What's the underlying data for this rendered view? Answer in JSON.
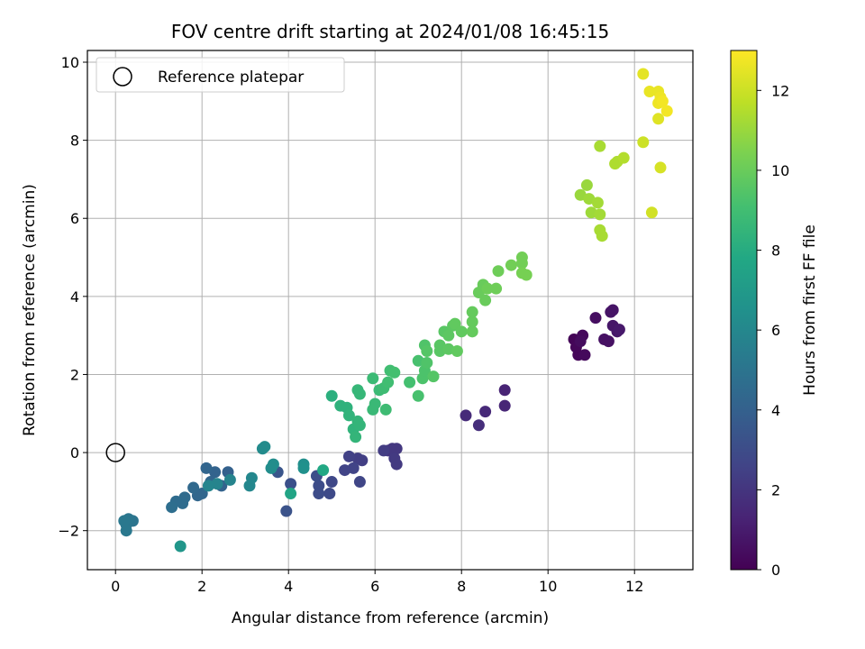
{
  "chart_data": {
    "type": "scatter",
    "title": "FOV centre drift starting at 2024/01/08 16:45:15",
    "xlabel": "Angular distance from reference (arcmin)",
    "ylabel": "Rotation from reference (arcmin)",
    "xlim": [
      -0.65,
      13.35
    ],
    "ylim": [
      -3.0,
      10.3
    ],
    "xticks": [
      0,
      2,
      4,
      6,
      8,
      10,
      12
    ],
    "yticks": [
      -2,
      0,
      2,
      4,
      6,
      8,
      10
    ],
    "grid": true,
    "legend": {
      "placement": "top-left",
      "entries": [
        {
          "label": "Reference platepar",
          "marker": "open-circle"
        }
      ]
    },
    "reference_point": {
      "x": 0,
      "y": 0
    },
    "colorbar": {
      "label": "Hours from first FF file",
      "colormap": "viridis",
      "range": [
        0,
        13
      ],
      "ticks": [
        0,
        2,
        4,
        6,
        8,
        10,
        12
      ]
    },
    "points": [
      {
        "x": 10.6,
        "y": 2.9,
        "c": 0.1
      },
      {
        "x": 10.7,
        "y": 2.5,
        "c": 0.2
      },
      {
        "x": 10.8,
        "y": 3.0,
        "c": 0.3
      },
      {
        "x": 10.85,
        "y": 2.5,
        "c": 0.3
      },
      {
        "x": 10.65,
        "y": 2.7,
        "c": 0.2
      },
      {
        "x": 10.75,
        "y": 2.85,
        "c": 0.4
      },
      {
        "x": 11.1,
        "y": 3.45,
        "c": 0.5
      },
      {
        "x": 11.3,
        "y": 2.9,
        "c": 0.6
      },
      {
        "x": 11.4,
        "y": 2.85,
        "c": 0.6
      },
      {
        "x": 11.45,
        "y": 3.6,
        "c": 0.7
      },
      {
        "x": 11.5,
        "y": 3.65,
        "c": 0.7
      },
      {
        "x": 11.5,
        "y": 3.25,
        "c": 0.8
      },
      {
        "x": 11.6,
        "y": 3.1,
        "c": 0.8
      },
      {
        "x": 11.65,
        "y": 3.15,
        "c": 0.9
      },
      {
        "x": 9.0,
        "y": 1.6,
        "c": 1.3
      },
      {
        "x": 9.0,
        "y": 1.2,
        "c": 1.4
      },
      {
        "x": 8.55,
        "y": 1.05,
        "c": 1.5
      },
      {
        "x": 8.1,
        "y": 0.95,
        "c": 1.6
      },
      {
        "x": 8.4,
        "y": 0.7,
        "c": 1.7
      },
      {
        "x": 6.3,
        "y": 0.05,
        "c": 2.0
      },
      {
        "x": 6.4,
        "y": 0.1,
        "c": 2.1
      },
      {
        "x": 6.5,
        "y": 0.1,
        "c": 2.1
      },
      {
        "x": 6.45,
        "y": -0.15,
        "c": 2.2
      },
      {
        "x": 6.5,
        "y": -0.3,
        "c": 2.2
      },
      {
        "x": 6.2,
        "y": 0.05,
        "c": 2.3
      },
      {
        "x": 5.6,
        "y": -0.15,
        "c": 2.4
      },
      {
        "x": 5.7,
        "y": -0.2,
        "c": 2.4
      },
      {
        "x": 5.4,
        "y": -0.1,
        "c": 2.5
      },
      {
        "x": 5.5,
        "y": -0.4,
        "c": 2.6
      },
      {
        "x": 5.3,
        "y": -0.45,
        "c": 2.6
      },
      {
        "x": 5.65,
        "y": -0.75,
        "c": 2.7
      },
      {
        "x": 5.0,
        "y": -0.75,
        "c": 2.8
      },
      {
        "x": 4.95,
        "y": -1.05,
        "c": 2.9
      },
      {
        "x": 4.7,
        "y": -0.85,
        "c": 3.0
      },
      {
        "x": 4.7,
        "y": -1.05,
        "c": 3.0
      },
      {
        "x": 4.65,
        "y": -0.6,
        "c": 3.1
      },
      {
        "x": 4.05,
        "y": -0.8,
        "c": 3.2
      },
      {
        "x": 3.95,
        "y": -1.5,
        "c": 3.3
      },
      {
        "x": 3.75,
        "y": -0.5,
        "c": 3.4
      },
      {
        "x": 2.6,
        "y": -0.5,
        "c": 4.0
      },
      {
        "x": 2.45,
        "y": -0.85,
        "c": 4.1
      },
      {
        "x": 2.3,
        "y": -0.5,
        "c": 4.1
      },
      {
        "x": 2.2,
        "y": -0.75,
        "c": 4.2
      },
      {
        "x": 2.1,
        "y": -0.4,
        "c": 4.2
      },
      {
        "x": 2.0,
        "y": -1.05,
        "c": 4.3
      },
      {
        "x": 1.9,
        "y": -1.1,
        "c": 4.3
      },
      {
        "x": 1.8,
        "y": -0.9,
        "c": 4.4
      },
      {
        "x": 1.6,
        "y": -1.15,
        "c": 4.5
      },
      {
        "x": 1.55,
        "y": -1.3,
        "c": 4.6
      },
      {
        "x": 1.4,
        "y": -1.25,
        "c": 4.6
      },
      {
        "x": 1.3,
        "y": -1.4,
        "c": 4.7
      },
      {
        "x": 0.4,
        "y": -1.75,
        "c": 5.0
      },
      {
        "x": 0.3,
        "y": -1.7,
        "c": 5.1
      },
      {
        "x": 0.25,
        "y": -1.85,
        "c": 5.1
      },
      {
        "x": 0.2,
        "y": -1.75,
        "c": 5.2
      },
      {
        "x": 0.25,
        "y": -2.0,
        "c": 5.2
      },
      {
        "x": 2.65,
        "y": -0.7,
        "c": 5.8
      },
      {
        "x": 2.35,
        "y": -0.8,
        "c": 5.8
      },
      {
        "x": 2.15,
        "y": -0.85,
        "c": 5.9
      },
      {
        "x": 3.1,
        "y": -0.85,
        "c": 6.0
      },
      {
        "x": 3.15,
        "y": -0.65,
        "c": 6.0
      },
      {
        "x": 3.4,
        "y": 0.1,
        "c": 6.2
      },
      {
        "x": 3.45,
        "y": 0.15,
        "c": 6.2
      },
      {
        "x": 3.65,
        "y": -0.3,
        "c": 6.3
      },
      {
        "x": 3.6,
        "y": -0.4,
        "c": 6.3
      },
      {
        "x": 4.35,
        "y": -0.3,
        "c": 6.4
      },
      {
        "x": 4.35,
        "y": -0.4,
        "c": 6.5
      },
      {
        "x": 1.5,
        "y": -2.4,
        "c": 6.8
      },
      {
        "x": 4.05,
        "y": -1.05,
        "c": 7.6
      },
      {
        "x": 4.8,
        "y": -0.45,
        "c": 7.8
      },
      {
        "x": 5.0,
        "y": 1.45,
        "c": 8.2
      },
      {
        "x": 5.2,
        "y": 1.2,
        "c": 8.3
      },
      {
        "x": 5.35,
        "y": 1.15,
        "c": 8.3
      },
      {
        "x": 5.4,
        "y": 0.95,
        "c": 8.4
      },
      {
        "x": 5.5,
        "y": 0.6,
        "c": 8.4
      },
      {
        "x": 5.55,
        "y": 0.4,
        "c": 8.5
      },
      {
        "x": 5.6,
        "y": 0.8,
        "c": 8.5
      },
      {
        "x": 5.65,
        "y": 0.7,
        "c": 8.5
      },
      {
        "x": 5.6,
        "y": 1.6,
        "c": 8.6
      },
      {
        "x": 5.65,
        "y": 1.5,
        "c": 8.6
      },
      {
        "x": 5.95,
        "y": 1.1,
        "c": 8.7
      },
      {
        "x": 6.0,
        "y": 1.25,
        "c": 8.7
      },
      {
        "x": 5.95,
        "y": 1.9,
        "c": 8.8
      },
      {
        "x": 6.1,
        "y": 1.6,
        "c": 8.8
      },
      {
        "x": 6.2,
        "y": 1.65,
        "c": 8.9
      },
      {
        "x": 6.25,
        "y": 1.1,
        "c": 8.9
      },
      {
        "x": 6.3,
        "y": 1.8,
        "c": 9.0
      },
      {
        "x": 6.35,
        "y": 2.1,
        "c": 9.0
      },
      {
        "x": 6.45,
        "y": 2.05,
        "c": 9.1
      },
      {
        "x": 6.8,
        "y": 1.8,
        "c": 9.1
      },
      {
        "x": 7.0,
        "y": 1.45,
        "c": 9.2
      },
      {
        "x": 7.0,
        "y": 2.35,
        "c": 9.2
      },
      {
        "x": 7.1,
        "y": 1.9,
        "c": 9.3
      },
      {
        "x": 7.15,
        "y": 2.1,
        "c": 9.3
      },
      {
        "x": 7.2,
        "y": 2.3,
        "c": 9.4
      },
      {
        "x": 7.15,
        "y": 2.75,
        "c": 9.4
      },
      {
        "x": 7.2,
        "y": 2.6,
        "c": 9.5
      },
      {
        "x": 7.35,
        "y": 1.95,
        "c": 9.5
      },
      {
        "x": 7.5,
        "y": 2.6,
        "c": 9.6
      },
      {
        "x": 7.5,
        "y": 2.75,
        "c": 9.6
      },
      {
        "x": 7.6,
        "y": 3.1,
        "c": 9.6
      },
      {
        "x": 7.7,
        "y": 3.0,
        "c": 9.7
      },
      {
        "x": 7.7,
        "y": 2.65,
        "c": 9.7
      },
      {
        "x": 7.8,
        "y": 3.25,
        "c": 9.7
      },
      {
        "x": 7.85,
        "y": 3.3,
        "c": 9.8
      },
      {
        "x": 7.9,
        "y": 2.6,
        "c": 9.8
      },
      {
        "x": 8.0,
        "y": 3.1,
        "c": 9.8
      },
      {
        "x": 8.25,
        "y": 3.1,
        "c": 9.9
      },
      {
        "x": 8.25,
        "y": 3.35,
        "c": 9.9
      },
      {
        "x": 8.25,
        "y": 3.6,
        "c": 9.9
      },
      {
        "x": 8.4,
        "y": 4.1,
        "c": 10.0
      },
      {
        "x": 8.5,
        "y": 4.3,
        "c": 10.0
      },
      {
        "x": 8.55,
        "y": 3.9,
        "c": 10.0
      },
      {
        "x": 8.6,
        "y": 4.2,
        "c": 10.1
      },
      {
        "x": 8.8,
        "y": 4.2,
        "c": 10.1
      },
      {
        "x": 8.85,
        "y": 4.65,
        "c": 10.1
      },
      {
        "x": 9.15,
        "y": 4.8,
        "c": 10.2
      },
      {
        "x": 9.4,
        "y": 5.0,
        "c": 10.2
      },
      {
        "x": 9.4,
        "y": 4.85,
        "c": 10.2
      },
      {
        "x": 9.4,
        "y": 4.6,
        "c": 10.3
      },
      {
        "x": 9.5,
        "y": 4.55,
        "c": 10.3
      },
      {
        "x": 10.75,
        "y": 6.6,
        "c": 11.0
      },
      {
        "x": 10.9,
        "y": 6.85,
        "c": 11.0
      },
      {
        "x": 10.95,
        "y": 6.5,
        "c": 11.1
      },
      {
        "x": 11.0,
        "y": 6.15,
        "c": 11.1
      },
      {
        "x": 11.15,
        "y": 6.4,
        "c": 11.2
      },
      {
        "x": 11.2,
        "y": 6.1,
        "c": 11.2
      },
      {
        "x": 11.2,
        "y": 5.7,
        "c": 11.3
      },
      {
        "x": 11.25,
        "y": 5.55,
        "c": 11.3
      },
      {
        "x": 11.2,
        "y": 7.85,
        "c": 11.3
      },
      {
        "x": 11.55,
        "y": 7.4,
        "c": 11.4
      },
      {
        "x": 11.6,
        "y": 7.45,
        "c": 11.4
      },
      {
        "x": 11.75,
        "y": 7.55,
        "c": 11.5
      },
      {
        "x": 12.2,
        "y": 7.95,
        "c": 12.0
      },
      {
        "x": 12.4,
        "y": 6.15,
        "c": 12.1
      },
      {
        "x": 12.6,
        "y": 7.3,
        "c": 12.2
      },
      {
        "x": 12.55,
        "y": 8.55,
        "c": 12.4
      },
      {
        "x": 12.2,
        "y": 9.7,
        "c": 12.5
      },
      {
        "x": 12.35,
        "y": 9.25,
        "c": 12.6
      },
      {
        "x": 12.55,
        "y": 9.25,
        "c": 12.6
      },
      {
        "x": 12.6,
        "y": 9.1,
        "c": 12.7
      },
      {
        "x": 12.55,
        "y": 8.95,
        "c": 12.7
      },
      {
        "x": 12.65,
        "y": 9.0,
        "c": 12.8
      },
      {
        "x": 12.75,
        "y": 8.75,
        "c": 12.8
      }
    ]
  }
}
